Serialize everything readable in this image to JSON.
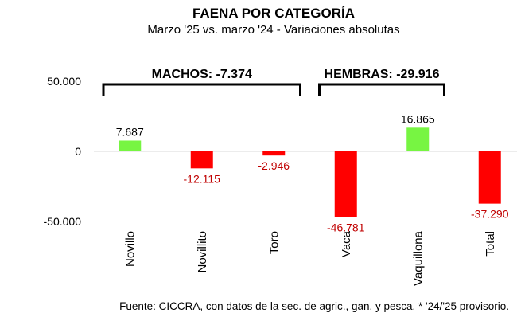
{
  "chart_data": {
    "type": "bar",
    "title": "FAENA POR CATEGORÍA",
    "subtitle": "Marzo '25 vs. marzo '24 - Variaciones absolutas",
    "categories": [
      "Novillo",
      "Novillito",
      "Toro",
      "Vaca",
      "Vaquillona",
      "Total"
    ],
    "values": [
      7687,
      -12115,
      -2946,
      -46781,
      16865,
      -37290
    ],
    "value_labels": [
      "7.687",
      "-12.115",
      "-2.946",
      "-46.781",
      "16.865",
      "-37.290"
    ],
    "y_ticks": [
      {
        "value": 50000,
        "label": "50.000"
      },
      {
        "value": 0,
        "label": "0"
      },
      {
        "value": -50000,
        "label": "-50.000"
      }
    ],
    "ylim": [
      -55000,
      55000
    ],
    "groups": [
      {
        "label": "MACHOS: -7.374",
        "from": 0,
        "to": 2
      },
      {
        "label": "HEMBRAS: -29.916",
        "from": 3,
        "to": 4
      }
    ],
    "colors": {
      "positive": "#77F542",
      "negative": "#FF0000",
      "negative_label": "#C00000",
      "positive_label": "#000000",
      "axis": "#d9d9d9"
    },
    "grid": false,
    "legend": "none"
  },
  "footer": {
    "source": "Fuente: CICCRA, con datos de la sec. de agric., gan. y pesca. * '24/'25 provisorio."
  }
}
